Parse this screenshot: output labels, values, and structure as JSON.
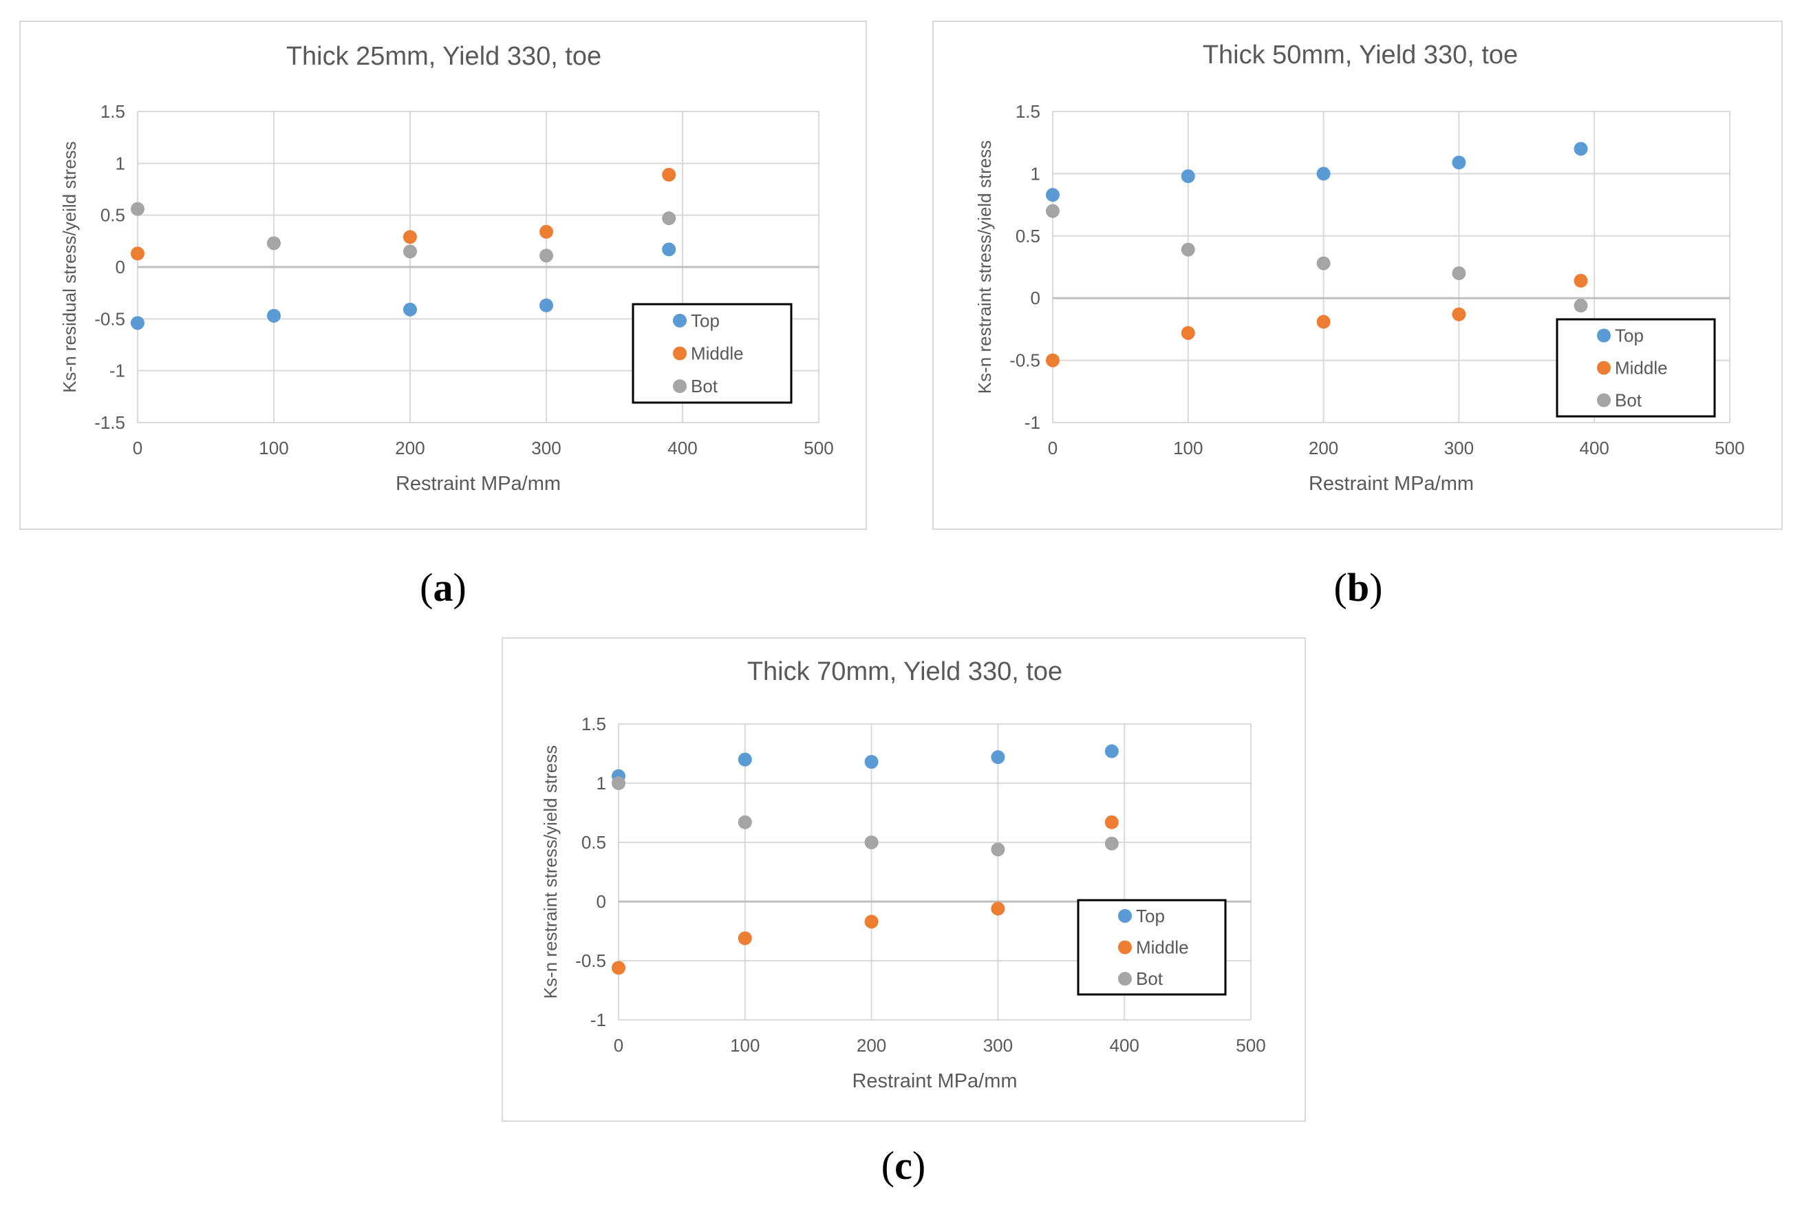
{
  "captions": [
    "a",
    "b",
    "c"
  ],
  "colors": {
    "Top": "#5b9bd5",
    "Middle": "#ed7d31",
    "Bot": "#a5a5a5",
    "grid": "#d9d9d9",
    "axis": "#bfbfbf",
    "text": "#595959"
  },
  "chart_data": [
    {
      "type": "scatter",
      "title": "Thick 25mm, Yield 330, toe",
      "xlabel": "Restraint MPa/mm",
      "ylabel": "Ks-n residual stress/yeild stress",
      "xlim": [
        0,
        500
      ],
      "ylim": [
        -1.5,
        1.5
      ],
      "xticks": [
        0,
        100,
        200,
        300,
        400,
        500
      ],
      "yticks": [
        -1.5,
        -1,
        -0.5,
        0,
        0.5,
        1,
        1.5
      ],
      "xtick_labels": [
        "0",
        "100",
        "200",
        "300",
        "400",
        "500"
      ],
      "ytick_labels": [
        "-1.5",
        "-1",
        "-0.5",
        "0",
        "0.5",
        "1",
        "1.5"
      ],
      "legend": [
        "Top",
        "Middle",
        "Bot"
      ],
      "series": [
        {
          "name": "Top",
          "x": [
            0,
            100,
            200,
            300,
            390
          ],
          "y": [
            -0.54,
            -0.47,
            -0.41,
            -0.37,
            0.17
          ]
        },
        {
          "name": "Middle",
          "x": [
            0,
            200,
            300,
            390
          ],
          "y": [
            0.13,
            0.29,
            0.34,
            0.89
          ]
        },
        {
          "name": "Bot",
          "x": [
            0,
            100,
            200,
            300,
            390
          ],
          "y": [
            0.56,
            0.23,
            0.15,
            0.11,
            0.47
          ]
        }
      ]
    },
    {
      "type": "scatter",
      "title": "Thick 50mm, Yield 330, toe",
      "xlabel": "Restraint MPa/mm",
      "ylabel": "Ks-n restraint stress/yield stress",
      "xlim": [
        0,
        500
      ],
      "ylim": [
        -1,
        1.5
      ],
      "xticks": [
        0,
        100,
        200,
        300,
        400,
        500
      ],
      "yticks": [
        -1,
        -0.5,
        0,
        0.5,
        1,
        1.5
      ],
      "xtick_labels": [
        "0",
        "100",
        "200",
        "300",
        "400",
        "500"
      ],
      "ytick_labels": [
        "-1",
        "-0.5",
        "0",
        "0.5",
        "1",
        "1.5"
      ],
      "legend": [
        "Top",
        "Middle",
        "Bot"
      ],
      "series": [
        {
          "name": "Top",
          "x": [
            0,
            100,
            200,
            300,
            390
          ],
          "y": [
            0.83,
            0.98,
            1.0,
            1.09,
            1.2
          ]
        },
        {
          "name": "Middle",
          "x": [
            0,
            100,
            200,
            300,
            390
          ],
          "y": [
            -0.5,
            -0.28,
            -0.19,
            -0.13,
            0.14
          ]
        },
        {
          "name": "Bot",
          "x": [
            0,
            100,
            200,
            300,
            390
          ],
          "y": [
            0.7,
            0.39,
            0.28,
            0.2,
            -0.06
          ]
        }
      ]
    },
    {
      "type": "scatter",
      "title": "Thick 70mm, Yield 330, toe",
      "xlabel": "Restraint MPa/mm",
      "ylabel": "Ks-n restraint stress/yield stress",
      "xlim": [
        0,
        500
      ],
      "ylim": [
        -1,
        1.5
      ],
      "xticks": [
        0,
        100,
        200,
        300,
        400,
        500
      ],
      "yticks": [
        -1,
        -0.5,
        0,
        0.5,
        1,
        1.5
      ],
      "xtick_labels": [
        "0",
        "100",
        "200",
        "300",
        "400",
        "500"
      ],
      "ytick_labels": [
        "-1",
        "-0.5",
        "0",
        "0.5",
        "1",
        "1.5"
      ],
      "legend": [
        "Top",
        "Middle",
        "Bot"
      ],
      "series": [
        {
          "name": "Top",
          "x": [
            0,
            100,
            200,
            300,
            390
          ],
          "y": [
            1.06,
            1.2,
            1.18,
            1.22,
            1.27
          ]
        },
        {
          "name": "Middle",
          "x": [
            0,
            100,
            200,
            300,
            390
          ],
          "y": [
            -0.56,
            -0.31,
            -0.17,
            -0.06,
            0.67
          ]
        },
        {
          "name": "Bot",
          "x": [
            0,
            100,
            200,
            300,
            390
          ],
          "y": [
            1.0,
            0.67,
            0.5,
            0.44,
            0.49
          ]
        }
      ]
    }
  ]
}
